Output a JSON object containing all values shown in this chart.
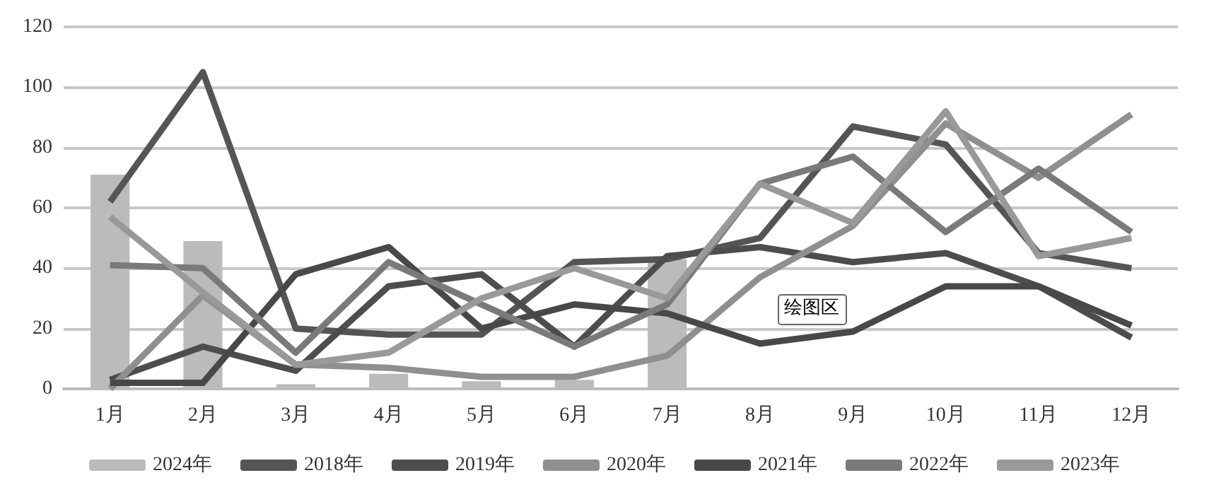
{
  "chart_data": {
    "type": "line",
    "categories": [
      "1月",
      "2月",
      "3月",
      "4月",
      "5月",
      "6月",
      "7月",
      "8月",
      "9月",
      "10月",
      "11月",
      "12月"
    ],
    "series": [
      {
        "name": "2024年",
        "type": "bar",
        "color": "#bbbbbb",
        "values": [
          71,
          49,
          1.5,
          5,
          2.5,
          3,
          43,
          null,
          null,
          null,
          null,
          null
        ]
      },
      {
        "name": "2018年",
        "color": "#555555",
        "values": [
          62,
          105,
          20,
          18,
          18,
          42,
          43,
          50,
          87,
          81,
          45,
          40
        ]
      },
      {
        "name": "2019年",
        "color": "#4d4d4d",
        "values": [
          3,
          14,
          6,
          34,
          38,
          14,
          44,
          47,
          42,
          45,
          34,
          17
        ]
      },
      {
        "name": "2020年",
        "color": "#8f8f8f",
        "values": [
          0,
          31,
          8,
          7,
          4,
          4,
          11,
          37,
          54,
          88,
          70,
          91
        ]
      },
      {
        "name": "2021年",
        "color": "#484848",
        "values": [
          2,
          2,
          38,
          47,
          20,
          28,
          25,
          15,
          19,
          34,
          34,
          21
        ]
      },
      {
        "name": "2022年",
        "color": "#7a7a7a",
        "values": [
          41,
          40,
          12,
          42,
          28,
          14,
          28,
          68,
          77,
          52,
          73,
          52
        ]
      },
      {
        "name": "2023年",
        "color": "#999999",
        "values": [
          57,
          32,
          8,
          12,
          30,
          40,
          30,
          68,
          55,
          92,
          44,
          50
        ]
      }
    ],
    "ylim": [
      0,
      120
    ],
    "yticks": [
      0,
      20,
      40,
      60,
      80,
      100,
      120
    ],
    "grid": "y",
    "legend": "bottom",
    "marker": "none",
    "line_style": "solid",
    "annotations": [
      "绘图区"
    ]
  }
}
